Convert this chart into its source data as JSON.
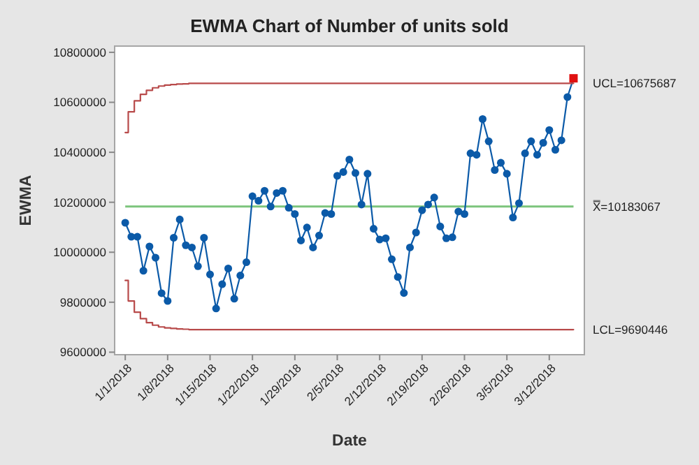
{
  "chart_data": {
    "type": "line",
    "title": "EWMA Chart of Number of units sold",
    "xlabel": "Date",
    "ylabel": "EWMA",
    "x": [
      "2018-01-01",
      "2018-01-02",
      "2018-01-03",
      "2018-01-04",
      "2018-01-05",
      "2018-01-06",
      "2018-01-07",
      "2018-01-08",
      "2018-01-09",
      "2018-01-10",
      "2018-01-11",
      "2018-01-12",
      "2018-01-13",
      "2018-01-14",
      "2018-01-15",
      "2018-01-16",
      "2018-01-17",
      "2018-01-18",
      "2018-01-19",
      "2018-01-20",
      "2018-01-21",
      "2018-01-22",
      "2018-01-23",
      "2018-01-24",
      "2018-01-25",
      "2018-01-26",
      "2018-01-27",
      "2018-01-28",
      "2018-01-29",
      "2018-01-30",
      "2018-01-31",
      "2018-02-01",
      "2018-02-02",
      "2018-02-03",
      "2018-02-04",
      "2018-02-05",
      "2018-02-06",
      "2018-02-07",
      "2018-02-08",
      "2018-02-09",
      "2018-02-10",
      "2018-02-11",
      "2018-02-12",
      "2018-02-13",
      "2018-02-14",
      "2018-02-15",
      "2018-02-16",
      "2018-02-17",
      "2018-02-18",
      "2018-02-19",
      "2018-02-20",
      "2018-02-21",
      "2018-02-22",
      "2018-02-23",
      "2018-02-24",
      "2018-02-25",
      "2018-02-26",
      "2018-02-27",
      "2018-02-28",
      "2018-03-01",
      "2018-03-02",
      "2018-03-03",
      "2018-03-04",
      "2018-03-05",
      "2018-03-06",
      "2018-03-07",
      "2018-03-08",
      "2018-03-09",
      "2018-03-10",
      "2018-03-11",
      "2018-03-12",
      "2018-03-13",
      "2018-03-14",
      "2018-03-15",
      "2018-03-16"
    ],
    "xlim": [
      "2017-12-30T06:00",
      "2018-03-17T19:00"
    ],
    "xticks": [
      {
        "value": "2018-01-01",
        "label": "1/1/2018"
      },
      {
        "value": "2018-01-08",
        "label": "1/8/2018"
      },
      {
        "value": "2018-01-15",
        "label": "1/15/2018"
      },
      {
        "value": "2018-01-22",
        "label": "1/22/2018"
      },
      {
        "value": "2018-01-29",
        "label": "1/29/2018"
      },
      {
        "value": "2018-02-05",
        "label": "2/5/2018"
      },
      {
        "value": "2018-02-12",
        "label": "2/12/2018"
      },
      {
        "value": "2018-02-19",
        "label": "2/19/2018"
      },
      {
        "value": "2018-02-26",
        "label": "2/26/2018"
      },
      {
        "value": "2018-03-05",
        "label": "3/5/2018"
      },
      {
        "value": "2018-03-12",
        "label": "3/12/2018"
      }
    ],
    "ylim": [
      9590000,
      10825000
    ],
    "yticks": [
      9600000,
      9800000,
      10000000,
      10200000,
      10400000,
      10600000,
      10800000
    ],
    "series": [
      {
        "color": "#0b5aa8",
        "marker": "circle",
        "values": [
          10118000,
          10062000,
          10062000,
          9926000,
          10023000,
          9978000,
          9836000,
          9805000,
          10058000,
          10131000,
          10028000,
          10019000,
          9944000,
          10058000,
          9911000,
          9775000,
          9872000,
          9935000,
          9814000,
          9907000,
          9960000,
          10224000,
          10206000,
          10246000,
          10183000,
          10237000,
          10246000,
          10178000,
          10153000,
          10047000,
          10099000,
          10019000,
          10067000,
          10157000,
          10153000,
          10306000,
          10321000,
          10371000,
          10317000,
          10191000,
          10314000,
          10094000,
          10051000,
          10056000,
          9972000,
          9901000,
          9837000,
          10019000,
          10079000,
          10168000,
          10191000,
          10219000,
          10103000,
          10056000,
          10060000,
          10163000,
          10153000,
          10396000,
          10390000,
          10533000,
          10444000,
          10329000,
          10358000,
          10314000,
          10139000,
          10196000,
          10396000,
          10444000,
          10390000,
          10438000,
          10489000,
          10410000,
          10448000,
          10621000,
          10696000
        ]
      },
      {
        "type": "step",
        "name": "UCL=10675687",
        "color": "#b84a4a",
        "marker": "none",
        "values": [
          10479000,
          10562000,
          10606000,
          10632000,
          10648000,
          10658000,
          10665000,
          10669000,
          10671000,
          10673000,
          10674000,
          10675687,
          10675687,
          10675687,
          10675687,
          10675687,
          10675687,
          10675687,
          10675687,
          10675687,
          10675687,
          10675687,
          10675687,
          10675687,
          10675687,
          10675687,
          10675687,
          10675687,
          10675687,
          10675687,
          10675687,
          10675687,
          10675687,
          10675687,
          10675687,
          10675687,
          10675687,
          10675687,
          10675687,
          10675687,
          10675687,
          10675687,
          10675687,
          10675687,
          10675687,
          10675687,
          10675687,
          10675687,
          10675687,
          10675687,
          10675687,
          10675687,
          10675687,
          10675687,
          10675687,
          10675687,
          10675687,
          10675687,
          10675687,
          10675687,
          10675687,
          10675687,
          10675687,
          10675687,
          10675687,
          10675687,
          10675687,
          10675687,
          10675687,
          10675687,
          10675687,
          10675687,
          10675687,
          10675687,
          10675687
        ]
      },
      {
        "type": "step",
        "name": "LCL=9690446",
        "color": "#b84a4a",
        "marker": "none",
        "values": [
          9887000,
          9805000,
          9760000,
          9734000,
          9718000,
          9708000,
          9701000,
          9697000,
          9695000,
          9693000,
          9692000,
          9690446,
          9690446,
          9690446,
          9690446,
          9690446,
          9690446,
          9690446,
          9690446,
          9690446,
          9690446,
          9690446,
          9690446,
          9690446,
          9690446,
          9690446,
          9690446,
          9690446,
          9690446,
          9690446,
          9690446,
          9690446,
          9690446,
          9690446,
          9690446,
          9690446,
          9690446,
          9690446,
          9690446,
          9690446,
          9690446,
          9690446,
          9690446,
          9690446,
          9690446,
          9690446,
          9690446,
          9690446,
          9690446,
          9690446,
          9690446,
          9690446,
          9690446,
          9690446,
          9690446,
          9690446,
          9690446,
          9690446,
          9690446,
          9690446,
          9690446,
          9690446,
          9690446,
          9690446,
          9690446,
          9690446,
          9690446,
          9690446,
          9690446,
          9690446,
          9690446,
          9690446,
          9690446,
          9690446,
          9690446
        ]
      },
      {
        "type": "scatter",
        "color": "#e01010",
        "marker": "square",
        "x": [
          "2018-03-16"
        ],
        "values": [
          10696000
        ]
      }
    ],
    "ref_lines": [
      {
        "axis": "y",
        "value": 10183067,
        "label": "X̿=10183067",
        "color": "#7cc47c"
      }
    ]
  }
}
